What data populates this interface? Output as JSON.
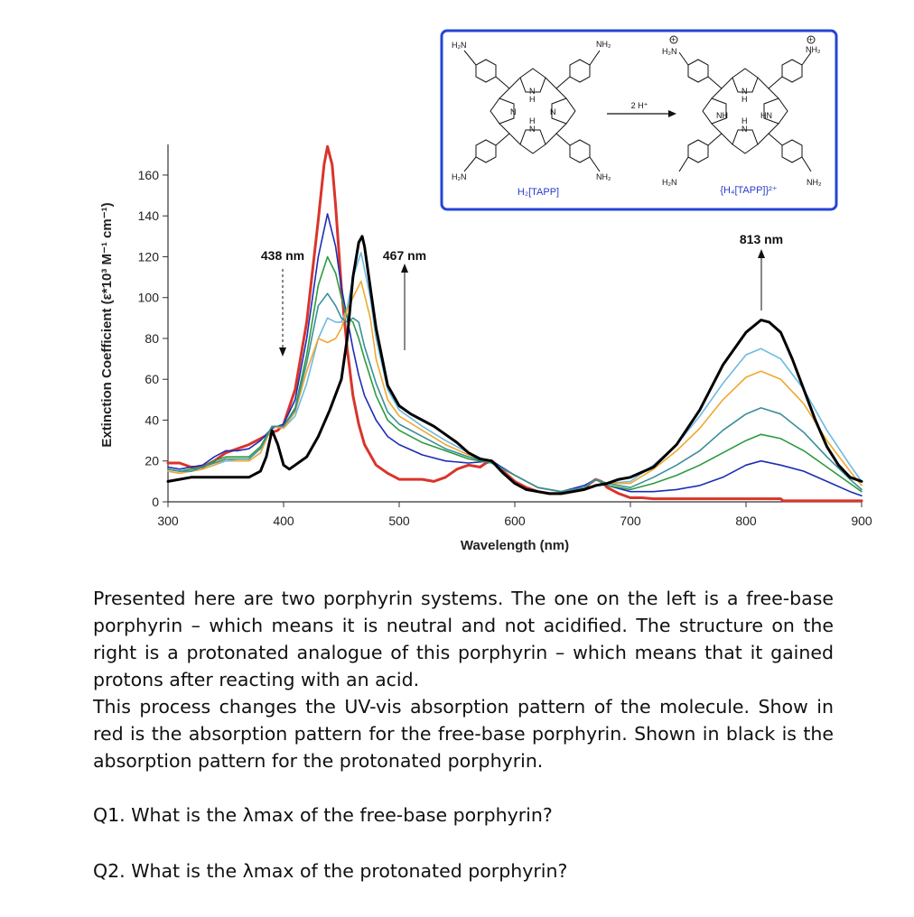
{
  "chart_data": {
    "type": "line",
    "xlabel": "Wavelength (nm)",
    "ylabel": "Extinction Coefficient (ε*10³ M⁻¹ cm⁻¹)",
    "xlim": [
      300,
      900
    ],
    "ylim": [
      0,
      175
    ],
    "xticks": [
      300,
      400,
      500,
      600,
      700,
      800,
      900
    ],
    "yticks": [
      0,
      20,
      40,
      60,
      80,
      100,
      120,
      140,
      160
    ],
    "grid": false,
    "series": [
      {
        "color": "#d9342b",
        "width": 3,
        "x": [
          300,
          310,
          320,
          330,
          340,
          350,
          360,
          370,
          380,
          390,
          395,
          400,
          410,
          420,
          430,
          435,
          438,
          442,
          445,
          450,
          455,
          460,
          465,
          470,
          480,
          490,
          500,
          510,
          520,
          530,
          540,
          545,
          550,
          560,
          570,
          575,
          580,
          585,
          590,
          600,
          610,
          620,
          630,
          640,
          650,
          660,
          665,
          670,
          675,
          680,
          690,
          700,
          710,
          720,
          750,
          800,
          830,
          832,
          840,
          860,
          880,
          900
        ],
        "y": [
          19,
          19,
          17,
          17,
          20,
          24,
          26,
          28,
          31,
          34,
          35,
          38,
          55,
          88,
          138,
          165,
          174,
          165,
          145,
          105,
          75,
          52,
          38,
          28,
          18,
          14,
          11,
          11,
          11,
          10,
          12,
          14,
          16,
          18,
          17,
          19,
          20,
          18,
          15,
          10,
          7,
          5,
          4,
          4,
          5,
          6,
          9,
          11,
          10,
          7,
          4,
          2,
          2,
          1.5,
          1.5,
          1.5,
          1.5,
          0.5,
          0.5,
          0.5,
          0.5,
          0.5
        ]
      },
      {
        "color": "#1c2db5",
        "width": 1.6,
        "x": [
          300,
          310,
          320,
          330,
          340,
          350,
          360,
          370,
          380,
          390,
          400,
          410,
          420,
          430,
          438,
          445,
          450,
          455,
          460,
          465,
          470,
          480,
          490,
          500,
          520,
          540,
          560,
          580,
          600,
          620,
          640,
          660,
          670,
          680,
          700,
          720,
          740,
          760,
          780,
          800,
          813,
          830,
          850,
          870,
          890,
          900
        ],
        "y": [
          17,
          16,
          17,
          18,
          22,
          25,
          25,
          26,
          30,
          36,
          38,
          50,
          80,
          120,
          141,
          125,
          105,
          90,
          75,
          62,
          52,
          40,
          32,
          28,
          23,
          20,
          19,
          20,
          13,
          7,
          5,
          8,
          11,
          8,
          5,
          5,
          6,
          8,
          12,
          18,
          20,
          18,
          15,
          10,
          5,
          3
        ]
      },
      {
        "color": "#6fb9e2",
        "width": 1.6,
        "x": [
          300,
          310,
          320,
          330,
          340,
          350,
          360,
          370,
          380,
          390,
          400,
          410,
          420,
          430,
          438,
          445,
          450,
          455,
          460,
          467,
          475,
          480,
          490,
          500,
          520,
          540,
          560,
          580,
          600,
          620,
          640,
          660,
          670,
          680,
          700,
          720,
          740,
          760,
          780,
          800,
          813,
          830,
          850,
          870,
          890,
          900
        ],
        "y": [
          15,
          14,
          15,
          16,
          18,
          20,
          20,
          20,
          24,
          37,
          36,
          42,
          58,
          80,
          90,
          88,
          88,
          95,
          110,
          122,
          100,
          80,
          55,
          45,
          37,
          30,
          24,
          19,
          13,
          7,
          5,
          7,
          11,
          9,
          10,
          18,
          28,
          42,
          58,
          72,
          75,
          70,
          55,
          35,
          18,
          10
        ]
      },
      {
        "color": "#2d9a3f",
        "width": 1.6,
        "x": [
          300,
          310,
          320,
          330,
          340,
          350,
          360,
          370,
          380,
          390,
          400,
          410,
          420,
          430,
          438,
          445,
          450,
          455,
          460,
          465,
          470,
          480,
          490,
          500,
          520,
          540,
          560,
          580,
          600,
          620,
          640,
          660,
          670,
          680,
          700,
          720,
          740,
          760,
          780,
          800,
          813,
          830,
          850,
          870,
          890,
          900
        ],
        "y": [
          16,
          15,
          16,
          17,
          20,
          22,
          22,
          22,
          27,
          37,
          37,
          46,
          72,
          106,
          120,
          112,
          100,
          90,
          88,
          80,
          70,
          52,
          40,
          35,
          29,
          25,
          21,
          19,
          13,
          7,
          5,
          7,
          11,
          8,
          6,
          9,
          13,
          18,
          24,
          30,
          33,
          31,
          25,
          17,
          9,
          5
        ]
      },
      {
        "color": "#f0a830",
        "width": 1.6,
        "x": [
          300,
          310,
          320,
          330,
          340,
          350,
          360,
          370,
          380,
          390,
          400,
          410,
          420,
          430,
          438,
          445,
          450,
          455,
          460,
          467,
          475,
          480,
          490,
          500,
          520,
          540,
          560,
          580,
          600,
          620,
          640,
          660,
          670,
          680,
          700,
          720,
          740,
          760,
          780,
          800,
          813,
          830,
          850,
          870,
          890,
          900
        ],
        "y": [
          15,
          14,
          15,
          16,
          18,
          21,
          20,
          20,
          24,
          37,
          36,
          44,
          64,
          80,
          78,
          80,
          85,
          94,
          100,
          108,
          90,
          70,
          50,
          42,
          35,
          28,
          23,
          19,
          13,
          7,
          5,
          7,
          11,
          9,
          9,
          16,
          25,
          36,
          50,
          61,
          64,
          60,
          48,
          30,
          15,
          8
        ]
      },
      {
        "color": "#3a8f99",
        "width": 1.6,
        "x": [
          300,
          310,
          320,
          330,
          340,
          350,
          360,
          370,
          380,
          390,
          400,
          410,
          420,
          430,
          438,
          445,
          450,
          455,
          460,
          465,
          470,
          480,
          490,
          500,
          520,
          540,
          560,
          580,
          600,
          620,
          640,
          660,
          670,
          680,
          700,
          720,
          740,
          760,
          780,
          800,
          813,
          830,
          850,
          870,
          890,
          900
        ],
        "y": [
          16,
          15,
          15,
          17,
          19,
          21,
          21,
          21,
          26,
          37,
          37,
          45,
          68,
          96,
          102,
          96,
          90,
          88,
          90,
          88,
          76,
          58,
          44,
          38,
          32,
          26,
          22,
          19,
          13,
          7,
          5,
          7,
          11,
          9,
          7,
          12,
          18,
          25,
          35,
          43,
          46,
          43,
          34,
          22,
          11,
          6
        ]
      },
      {
        "color": "#000000",
        "width": 3,
        "x": [
          300,
          310,
          320,
          330,
          340,
          350,
          360,
          370,
          380,
          385,
          390,
          395,
          400,
          405,
          410,
          420,
          430,
          440,
          450,
          455,
          460,
          465,
          468,
          470,
          475,
          480,
          490,
          500,
          510,
          520,
          530,
          540,
          550,
          560,
          570,
          580,
          590,
          600,
          610,
          620,
          630,
          640,
          650,
          660,
          670,
          680,
          690,
          700,
          720,
          740,
          760,
          780,
          800,
          813,
          820,
          830,
          840,
          850,
          860,
          870,
          880,
          890,
          900
        ],
        "y": [
          10,
          11,
          12,
          12,
          12,
          12,
          12,
          12,
          15,
          22,
          35,
          28,
          18,
          16,
          18,
          22,
          32,
          45,
          60,
          80,
          110,
          127,
          130,
          125,
          105,
          85,
          57,
          47,
          43,
          40,
          37,
          33,
          29,
          24,
          21,
          20,
          14,
          9,
          6,
          5,
          4,
          4,
          5,
          6,
          8,
          9,
          11,
          12,
          17,
          28,
          45,
          67,
          83,
          89,
          88,
          83,
          70,
          55,
          40,
          27,
          18,
          12,
          10
        ]
      }
    ],
    "annotations": [
      {
        "text": "438 nm",
        "arrow": "down"
      },
      {
        "text": "467 nm",
        "arrow": "up"
      },
      {
        "text": "813 nm",
        "arrow": "up"
      }
    ]
  },
  "figure": {
    "inset_arrow_label": "2 H⁺",
    "left_molecule": {
      "name": "H₂[TAPP]",
      "nh2_labels": [
        "H₂N",
        "NH₂",
        "H₂N",
        "NH₂"
      ],
      "ring_labels": [
        "N",
        "H",
        "N",
        "N",
        "H",
        "N"
      ]
    },
    "right_molecule": {
      "name": "{H₄[TAPP]}²⁺",
      "nh2_labels": [
        "H₂N",
        "NH₂",
        "H₂N",
        "NH₂"
      ],
      "ring_labels": [
        "N",
        "H",
        "NH",
        "HN",
        "H",
        "N"
      ]
    }
  },
  "text": {
    "paragraph1": "Presented here are two porphyrin systems. The one on the left is a free-base porphyrin – which means it is neutral and not acidified. The structure on the right is a protonated analogue of this porphyrin – which means that it gained protons after reacting with an acid.",
    "paragraph2": "This process changes the UV-vis absorption pattern of the molecule. Show in red is the absorption pattern for the free-base porphyrin. Shown in black is the absorption pattern for the protonated porphyrin.",
    "q1": "Q1. What is the λmax of the free-base porphyrin?",
    "q2": "Q2. What is the λmax of the protonated porphyrin?"
  },
  "colors": {
    "text": "#111111",
    "inset_border": "#2545d6",
    "molecule_label": "#2a3bc8"
  }
}
